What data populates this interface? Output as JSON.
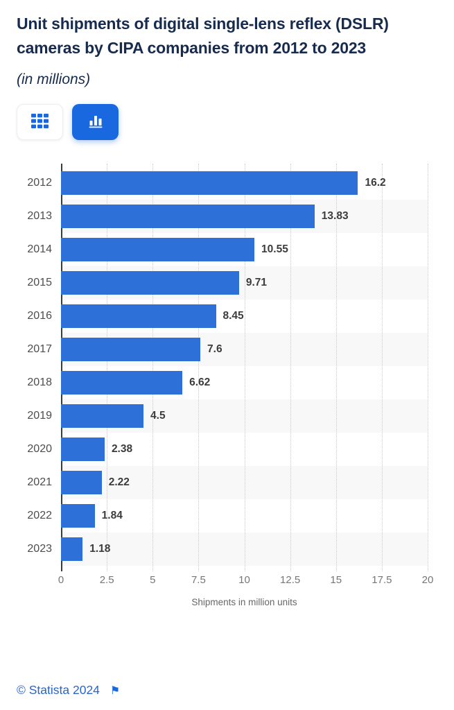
{
  "header": {
    "title": "Unit shipments of digital single-lens reflex (DSLR) cameras by CIPA companies from 2012 to 2023",
    "subtitle": "(in millions)"
  },
  "toolbar": {
    "active_view": "bar-chart",
    "buttons": [
      {
        "name": "table-view",
        "icon": "grid-view-icon",
        "active": false
      },
      {
        "name": "bar-chart-view",
        "icon": "bar-chart-icon",
        "active": true
      }
    ]
  },
  "chart_data": {
    "type": "bar",
    "orientation": "horizontal",
    "title": "Unit shipments of digital single-lens reflex (DSLR) cameras by CIPA companies from 2012 to 2023",
    "subtitle": "(in millions)",
    "categories": [
      "2012",
      "2013",
      "2014",
      "2015",
      "2016",
      "2017",
      "2018",
      "2019",
      "2020",
      "2021",
      "2022",
      "2023"
    ],
    "values": [
      16.2,
      13.83,
      10.55,
      9.71,
      8.45,
      7.6,
      6.62,
      4.5,
      2.38,
      2.22,
      1.84,
      1.18
    ],
    "value_labels": [
      "16.2",
      "13.83",
      "10.55",
      "9.71",
      "8.45",
      "7.6",
      "6.62",
      "4.5",
      "2.38",
      "2.22",
      "1.84",
      "1.18"
    ],
    "xlabel": "Shipments in million units",
    "ylabel": "",
    "xlim": [
      0,
      20
    ],
    "xticks": [
      0,
      2.5,
      5,
      7.5,
      10,
      12.5,
      15,
      17.5,
      20
    ],
    "xtick_labels": [
      "0",
      "2.5",
      "5",
      "7.5",
      "10",
      "12.5",
      "15",
      "17.5",
      "20"
    ],
    "grid": true,
    "gridline_style": "dotted",
    "legend": "none",
    "bar_color": "#2d71d8",
    "row_stripe_color": "#f8f8f8"
  },
  "colors": {
    "title_navy": "#162b4d",
    "accent_blue": "#1a68e0",
    "bar_blue": "#2d71d8",
    "link_blue": "#2a64c9"
  },
  "footer": {
    "copyright": "© Statista 2024",
    "flag_icon": "⚑"
  }
}
